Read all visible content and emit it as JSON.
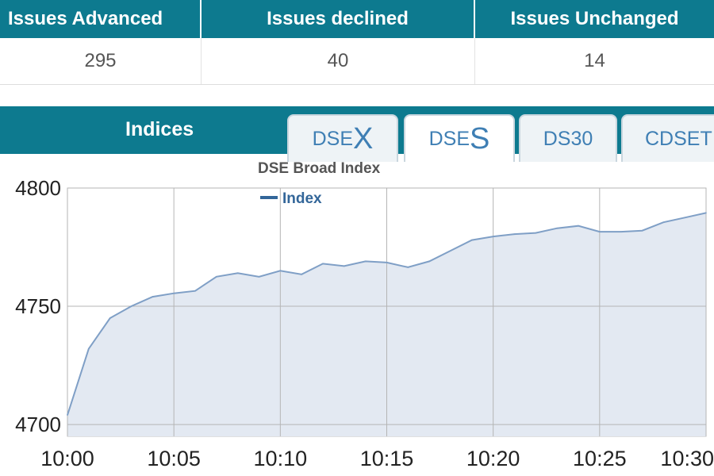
{
  "stats": {
    "headers": [
      "Issues Advanced",
      "Issues declined",
      "Issues Unchanged"
    ],
    "values": [
      "295",
      "40",
      "14"
    ]
  },
  "indices": {
    "title": "Indices",
    "tabs": [
      {
        "prefix": "DSE",
        "suffix": "X"
      },
      {
        "prefix": "DSE",
        "suffix": "S"
      },
      {
        "label": "DS30"
      },
      {
        "label": "CDSET"
      }
    ],
    "active_tab": "DSES"
  },
  "colors": {
    "header_bg": "#0d7a8f",
    "tab_text": "#3f7fb4",
    "series_line": "#7f9fc6",
    "series_fill": "#e3e9f2",
    "legend": "#336699"
  },
  "chart_data": {
    "type": "area",
    "title": "DSE Broad Index",
    "legend": "Index",
    "legend_placement": "top-center",
    "grid": true,
    "ylim": [
      4695,
      4800
    ],
    "yticks": [
      4700,
      4750,
      4800
    ],
    "xlim": [
      "10:00",
      "10:30"
    ],
    "xticks": [
      "10:00",
      "10:05",
      "10:10",
      "10:15",
      "10:20",
      "10:25",
      "10:30"
    ],
    "series": [
      {
        "name": "Index",
        "x": [
          "10:00",
          "10:01",
          "10:02",
          "10:03",
          "10:04",
          "10:05",
          "10:06",
          "10:07",
          "10:08",
          "10:09",
          "10:10",
          "10:11",
          "10:12",
          "10:13",
          "10:14",
          "10:15",
          "10:16",
          "10:17",
          "10:18",
          "10:19",
          "10:20",
          "10:21",
          "10:22",
          "10:23",
          "10:24",
          "10:25",
          "10:26",
          "10:27",
          "10:28",
          "10:29",
          "10:30"
        ],
        "values": [
          4704,
          4732,
          4745,
          4750,
          4754,
          4755.5,
          4756.5,
          4762.5,
          4764,
          4762.5,
          4765,
          4763.5,
          4768,
          4767,
          4769,
          4768.5,
          4766.5,
          4769,
          4773.5,
          4778,
          4779.5,
          4780.5,
          4781,
          4783,
          4784,
          4781.5,
          4781.5,
          4782,
          4785.5,
          4787.5,
          4789.5
        ]
      }
    ]
  }
}
